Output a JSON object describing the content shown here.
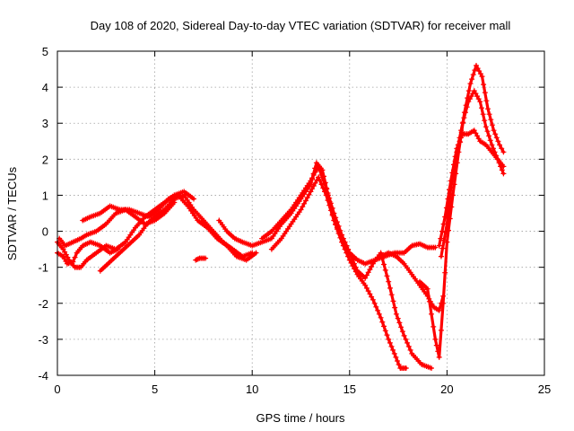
{
  "chart_data": {
    "type": "scatter",
    "title": "Day 108 of 2020, Sidereal Day-to-day VTEC variation (SDTVAR) for receiver mall",
    "xlabel": "GPS time / hours",
    "ylabel": "SDTVAR / TECUs",
    "xlim": [
      0,
      25
    ],
    "ylim": [
      -4,
      5
    ],
    "x_ticks": [
      "0",
      "5",
      "10",
      "15",
      "20",
      "25"
    ],
    "y_ticks": [
      "-4",
      "-3",
      "-2",
      "-1",
      "0",
      "1",
      "2",
      "3",
      "4",
      "5"
    ],
    "x_tick_values": [
      0,
      5,
      10,
      15,
      20,
      25
    ],
    "y_tick_values": [
      -4,
      -3,
      -2,
      -1,
      0,
      1,
      2,
      3,
      4,
      5
    ],
    "grid": true,
    "legend": "none",
    "marker": "plus",
    "series_color": "#ff0000",
    "series": [
      {
        "name": "track-1",
        "x": [
          0.0,
          0.3,
          0.6,
          0.9,
          1.2,
          1.5,
          2.0,
          2.5,
          3.0,
          3.5,
          4.0,
          4.5,
          5.0,
          5.5,
          6.0,
          6.5,
          7.0
        ],
        "y": [
          -0.3,
          -0.5,
          -0.8,
          -1.0,
          -1.0,
          -0.8,
          -0.6,
          -0.4,
          -0.5,
          -0.3,
          0.1,
          0.4,
          0.6,
          0.8,
          1.0,
          1.1,
          0.9
        ]
      },
      {
        "name": "track-2",
        "x": [
          0.0,
          0.3,
          0.5,
          0.8,
          1.0,
          1.3,
          1.7,
          2.2,
          2.7,
          3.1
        ],
        "y": [
          -0.6,
          -0.7,
          -0.9,
          -0.85,
          -0.6,
          -0.4,
          -0.3,
          -0.4,
          -0.6,
          -0.5
        ]
      },
      {
        "name": "track-3",
        "x": [
          0.1,
          0.4,
          0.8,
          1.2,
          1.5,
          2.0,
          2.5,
          3.0,
          3.5,
          4.0,
          4.5,
          5.0,
          5.5,
          6.0
        ],
        "y": [
          -0.2,
          -0.4,
          -0.3,
          -0.2,
          -0.1,
          0.0,
          0.2,
          0.5,
          0.6,
          0.4,
          0.2,
          0.3,
          0.5,
          0.8
        ]
      },
      {
        "name": "track-4",
        "x": [
          1.3,
          1.7,
          2.2,
          2.7,
          3.2,
          3.7,
          4.2,
          4.7,
          5.2,
          5.7,
          6.2,
          6.7,
          7.2,
          7.7,
          8.2,
          8.7,
          9.2,
          9.7,
          10.2
        ],
        "y": [
          0.3,
          0.4,
          0.5,
          0.7,
          0.6,
          0.6,
          0.5,
          0.4,
          0.6,
          0.9,
          1.0,
          0.7,
          0.3,
          0.1,
          -0.2,
          -0.4,
          -0.7,
          -0.8,
          -0.6
        ]
      },
      {
        "name": "track-5",
        "x": [
          2.2,
          2.6,
          3.0,
          3.4,
          3.8,
          4.2,
          4.6,
          5.0,
          5.5,
          6.0,
          6.5,
          7.0,
          7.5,
          8.0,
          8.5,
          9.0,
          9.5,
          10.0
        ],
        "y": [
          -1.1,
          -0.9,
          -0.7,
          -0.5,
          -0.3,
          -0.1,
          0.2,
          0.4,
          0.6,
          0.9,
          1.0,
          0.6,
          0.3,
          0.0,
          -0.3,
          -0.5,
          -0.7,
          -0.6
        ]
      },
      {
        "name": "track-6",
        "x": [
          7.1,
          7.3,
          7.6
        ],
        "y": [
          -0.8,
          -0.75,
          -0.75
        ]
      },
      {
        "name": "track-7",
        "x": [
          8.3,
          8.7,
          9.1,
          9.5,
          10.0,
          10.5,
          11.0,
          11.5,
          12.0,
          12.5,
          13.0,
          13.3,
          13.6,
          13.9,
          14.2,
          14.6,
          15.0,
          15.4,
          15.8,
          16.3,
          16.8,
          17.3,
          17.8,
          18.2,
          18.6,
          19.0,
          19.4
        ],
        "y": [
          0.3,
          0.0,
          -0.2,
          -0.3,
          -0.4,
          -0.3,
          -0.2,
          0.2,
          0.5,
          0.9,
          1.3,
          1.9,
          1.7,
          1.0,
          0.3,
          -0.2,
          -0.6,
          -0.8,
          -0.9,
          -0.8,
          -0.7,
          -0.6,
          -0.6,
          -0.4,
          -0.35,
          -0.45,
          -0.45
        ]
      },
      {
        "name": "track-8",
        "x": [
          10.5,
          11.0,
          11.5,
          12.0,
          12.5,
          13.0,
          13.4,
          13.8,
          14.2,
          14.6,
          15.0,
          15.4,
          15.8,
          16.2,
          16.6,
          17.0,
          17.4,
          17.8,
          18.2,
          18.7,
          19.2
        ],
        "y": [
          -0.2,
          0.0,
          0.3,
          0.6,
          1.0,
          1.4,
          1.8,
          1.2,
          0.5,
          -0.1,
          -0.6,
          -1.1,
          -1.3,
          -0.9,
          -0.6,
          -1.4,
          -2.3,
          -2.9,
          -3.4,
          -3.7,
          -3.8
        ]
      },
      {
        "name": "track-9",
        "x": [
          11.0,
          11.5,
          12.0,
          12.5,
          13.0,
          13.4,
          13.8,
          14.2,
          14.6,
          15.0,
          15.4,
          15.8,
          16.2,
          16.6,
          17.0,
          17.3,
          17.6,
          17.9
        ],
        "y": [
          -0.5,
          -0.2,
          0.2,
          0.6,
          1.1,
          1.5,
          1.0,
          0.3,
          -0.3,
          -0.8,
          -1.2,
          -1.5,
          -1.9,
          -2.4,
          -3.0,
          -3.4,
          -3.8,
          -3.8
        ]
      },
      {
        "name": "track-10",
        "x": [
          16.6,
          17.0,
          17.4,
          17.8,
          18.2,
          18.6,
          19.0,
          19.3,
          19.6,
          19.8
        ],
        "y": [
          -0.7,
          -0.6,
          -0.7,
          -0.9,
          -1.2,
          -1.5,
          -1.8,
          -2.1,
          -2.2,
          -1.8
        ]
      },
      {
        "name": "track-11",
        "x": [
          18.6,
          19.0,
          19.2,
          19.4,
          19.6,
          19.8,
          20.0,
          20.3,
          20.6,
          20.9,
          21.2,
          21.5,
          21.8,
          22.1,
          22.4,
          22.7,
          22.9
        ],
        "y": [
          -1.4,
          -1.6,
          -2.3,
          -3.0,
          -3.5,
          -2.0,
          -0.3,
          1.0,
          2.2,
          3.3,
          4.1,
          4.6,
          4.3,
          3.4,
          2.8,
          2.4,
          2.2
        ]
      },
      {
        "name": "track-12",
        "x": [
          19.7,
          20.0,
          20.2,
          20.5,
          20.8,
          21.1,
          21.4,
          21.7,
          22.0,
          22.3,
          22.6,
          22.9
        ],
        "y": [
          -0.7,
          0.2,
          1.2,
          2.2,
          3.0,
          3.6,
          3.9,
          3.6,
          2.9,
          2.4,
          2.0,
          1.6
        ]
      },
      {
        "name": "track-13",
        "x": [
          19.6,
          19.9,
          20.2,
          20.5,
          20.8,
          21.1,
          21.4,
          21.7,
          22.0,
          22.3,
          22.6,
          22.9
        ],
        "y": [
          -0.4,
          0.4,
          1.4,
          2.3,
          2.7,
          2.7,
          2.8,
          2.5,
          2.4,
          2.2,
          2.0,
          1.8
        ]
      }
    ]
  }
}
